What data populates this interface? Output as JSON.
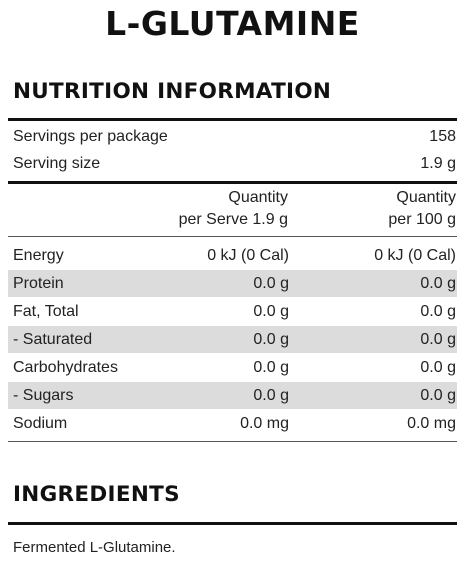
{
  "product": {
    "title": "L-GLUTAMINE"
  },
  "nutrition": {
    "heading": "NUTRITION INFORMATION",
    "servings_per_package_label": "Servings per package",
    "servings_per_package_value": "158",
    "serving_size_label": "Serving size",
    "serving_size_value": "1.9 g",
    "column_headers": {
      "per_serve_line1": "Quantity",
      "per_serve_line2": "per Serve 1.9 g",
      "per_100g_line1": "Quantity",
      "per_100g_line2": "per 100 g"
    },
    "rows": [
      {
        "label": "Energy",
        "per_serve": "0 kJ (0 Cal)",
        "per_100g": "0 kJ (0 Cal)"
      },
      {
        "label": "Protein",
        "per_serve": "0.0 g",
        "per_100g": "0.0 g"
      },
      {
        "label": "Fat, Total",
        "per_serve": "0.0 g",
        "per_100g": "0.0 g"
      },
      {
        "label": "- Saturated",
        "per_serve": "0.0 g",
        "per_100g": "0.0 g"
      },
      {
        "label": "Carbohydrates",
        "per_serve": "0.0 g",
        "per_100g": "0.0 g"
      },
      {
        "label": "- Sugars",
        "per_serve": "0.0 g",
        "per_100g": "0.0 g"
      },
      {
        "label": "Sodium",
        "per_serve": "0.0 mg",
        "per_100g": "0.0 mg"
      }
    ]
  },
  "ingredients": {
    "heading": "INGREDIENTS",
    "text": "Fermented L-Glutamine."
  }
}
